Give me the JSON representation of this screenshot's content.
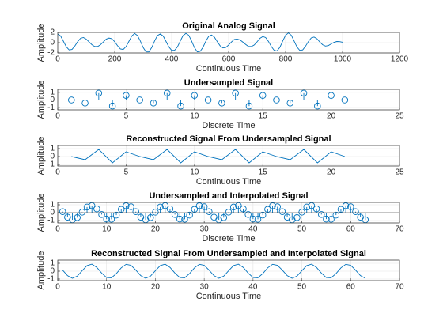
{
  "chart_data": [
    {
      "type": "line",
      "title": "Original Analog Signal",
      "xlabel": "Continuous Time",
      "ylabel": "Amplitude",
      "color": "#0072BD",
      "grid": true,
      "xlim": [
        0,
        1200
      ],
      "xticks": [
        0,
        200,
        400,
        600,
        800,
        1000,
        1200
      ],
      "ylim": [
        -2,
        2
      ],
      "yticks": [
        -2,
        0,
        2
      ],
      "x": [
        0,
        10,
        20,
        30,
        40,
        50,
        60,
        70,
        80,
        90,
        100,
        110,
        120,
        130,
        140,
        150,
        160,
        170,
        180,
        190,
        200,
        210,
        220,
        230,
        240,
        250,
        260,
        270,
        280,
        290,
        300,
        310,
        320,
        330,
        340,
        350,
        360,
        370,
        380,
        390,
        400,
        410,
        420,
        430,
        440,
        450,
        460,
        470,
        480,
        490,
        500,
        510,
        520,
        530,
        540,
        550,
        560,
        570,
        580,
        590,
        600,
        610,
        620,
        630,
        640,
        650,
        660,
        670,
        680,
        690,
        700,
        710,
        720,
        730,
        740,
        750,
        760,
        770,
        780,
        790,
        800,
        810,
        820,
        830,
        840,
        850,
        860,
        870,
        880,
        890,
        900,
        910,
        920,
        930,
        940,
        950,
        960,
        970,
        980,
        990,
        1000
      ],
      "values": [
        1.7,
        1.31,
        0.27,
        -0.8,
        -1.41,
        -1.32,
        -0.65,
        0.2,
        0.85,
        1.0,
        0.69,
        0.15,
        -0.4,
        -0.75,
        -0.75,
        -0.4,
        0.14,
        0.69,
        0.9,
        0.77,
        0.19,
        -0.6,
        -1.22,
        -1.32,
        -0.75,
        0.27,
        1.31,
        1.8,
        1.39,
        0.32,
        -0.95,
        -1.79,
        -1.79,
        -0.95,
        0.31,
        1.39,
        1.7,
        1.31,
        0.27,
        -0.8,
        -1.5,
        -1.5,
        -0.85,
        0.29,
        1.39,
        1.8,
        1.46,
        0.32,
        -0.95,
        -1.79,
        -1.69,
        -0.9,
        0.29,
        1.23,
        1.5,
        1.08,
        0.22,
        -0.6,
        -1.03,
        -0.94,
        -0.45,
        0.14,
        0.62,
        0.7,
        0.54,
        0.12,
        -0.35,
        -0.75,
        -0.75,
        -0.45,
        0.17,
        0.85,
        1.2,
        1.0,
        0.24,
        -0.75,
        -1.5,
        -1.6,
        -0.9,
        0.32,
        1.46,
        1.9,
        1.46,
        0.31,
        -0.85,
        -1.5,
        -1.41,
        -0.7,
        0.22,
        0.92,
        1.1,
        0.77,
        0.15,
        -0.4,
        -0.66,
        -0.56,
        -0.25,
        0.07,
        0.23,
        0.2,
        0.08
      ]
    },
    {
      "type": "stem",
      "title": "Undersampled Signal",
      "xlabel": "Discrete Time",
      "ylabel": "Amplitude",
      "color": "#0072BD",
      "grid": true,
      "xlim": [
        0,
        25
      ],
      "xticks": [
        0,
        5,
        10,
        15,
        20,
        25
      ],
      "ylim": [
        -1.3,
        1.4
      ],
      "yticks": [
        -1,
        0,
        1
      ],
      "x": [
        1,
        2,
        3,
        4,
        5,
        6,
        7,
        8,
        9,
        10,
        11,
        12,
        13,
        14,
        15,
        16,
        17,
        18,
        19,
        20,
        21
      ],
      "values": [
        0,
        -0.4,
        0.9,
        -0.8,
        0.6,
        0,
        -0.4,
        0.9,
        -0.8,
        0.6,
        0,
        -0.4,
        0.9,
        -0.8,
        0.6,
        0,
        -0.4,
        0.9,
        -0.8,
        0.6,
        0
      ]
    },
    {
      "type": "line",
      "title": "Reconstructed Signal From Undersampled Signal",
      "xlabel": "Continuous Time",
      "ylabel": "Amplitude",
      "color": "#0072BD",
      "grid": true,
      "xlim": [
        0,
        25
      ],
      "xticks": [
        0,
        5,
        10,
        15,
        20,
        25
      ],
      "ylim": [
        -1.2,
        1.4
      ],
      "yticks": [
        -1,
        0,
        1
      ],
      "x": [
        1,
        2,
        3,
        4,
        5,
        6,
        7,
        8,
        9,
        10,
        11,
        12,
        13,
        14,
        15,
        16,
        17,
        18,
        19,
        20,
        21
      ],
      "values": [
        0,
        -0.4,
        0.9,
        -0.8,
        0.6,
        0,
        -0.4,
        0.9,
        -0.8,
        0.6,
        0,
        -0.4,
        0.9,
        -0.8,
        0.6,
        0,
        -0.4,
        0.9,
        -0.8,
        0.6,
        0
      ]
    },
    {
      "type": "stem",
      "title": "Undersampled and Interpolated Signal",
      "xlabel": "Discrete Time",
      "ylabel": "Amplitude",
      "color": "#0072BD",
      "grid": true,
      "xlim": [
        0,
        70
      ],
      "xticks": [
        0,
        10,
        20,
        30,
        40,
        50,
        60,
        70
      ],
      "ylim": [
        -1.3,
        1.3
      ],
      "yticks": [
        -1,
        0,
        1
      ],
      "x": [
        1,
        2,
        3,
        4,
        5,
        6,
        7,
        8,
        9,
        10,
        11,
        12,
        13,
        14,
        15,
        16,
        17,
        18,
        19,
        20,
        21,
        22,
        23,
        24,
        25,
        26,
        27,
        28,
        29,
        30,
        31,
        32,
        33,
        34,
        35,
        36,
        37,
        38,
        39,
        40,
        41,
        42,
        43,
        44,
        45,
        46,
        47,
        48,
        49,
        50,
        51,
        52,
        53,
        54,
        55,
        56,
        57,
        58,
        59,
        60,
        61,
        62,
        63
      ],
      "values": [
        0.13,
        -0.57,
        -0.9,
        -0.63,
        0.06,
        0.71,
        0.89,
        0.48,
        -0.24,
        -0.81,
        -0.84,
        -0.31,
        0.42,
        0.87,
        0.75,
        0.13,
        -0.57,
        -0.9,
        -0.63,
        0.06,
        0.71,
        0.89,
        0.48,
        -0.24,
        -0.81,
        -0.84,
        -0.31,
        0.42,
        0.87,
        0.75,
        0.13,
        -0.57,
        -0.9,
        -0.63,
        0.06,
        0.71,
        0.89,
        0.48,
        -0.24,
        -0.81,
        -0.84,
        -0.31,
        0.42,
        0.87,
        0.75,
        0.13,
        -0.57,
        -0.9,
        -0.63,
        0.06,
        0.71,
        0.89,
        0.48,
        -0.24,
        -0.81,
        -0.84,
        -0.31,
        0.42,
        0.87,
        0.75,
        0.13,
        -0.57,
        -0.9
      ]
    },
    {
      "type": "line",
      "title": "Reconstructed Signal From Undersampled and Interpolated Signal",
      "xlabel": "Continuous Time",
      "ylabel": "Amplitude",
      "color": "#0072BD",
      "grid": true,
      "xlim": [
        0,
        70
      ],
      "xticks": [
        0,
        10,
        20,
        30,
        40,
        50,
        60,
        70
      ],
      "ylim": [
        -1.2,
        1.4
      ],
      "yticks": [
        -1,
        0,
        1
      ],
      "x": [
        1,
        2,
        3,
        4,
        5,
        6,
        7,
        8,
        9,
        10,
        11,
        12,
        13,
        14,
        15,
        16,
        17,
        18,
        19,
        20,
        21,
        22,
        23,
        24,
        25,
        26,
        27,
        28,
        29,
        30,
        31,
        32,
        33,
        34,
        35,
        36,
        37,
        38,
        39,
        40,
        41,
        42,
        43,
        44,
        45,
        46,
        47,
        48,
        49,
        50,
        51,
        52,
        53,
        54,
        55,
        56,
        57,
        58,
        59,
        60,
        61,
        62,
        63
      ],
      "values": [
        0.13,
        -0.57,
        -0.9,
        -0.63,
        0.06,
        0.71,
        0.89,
        0.48,
        -0.24,
        -0.81,
        -0.84,
        -0.31,
        0.42,
        0.87,
        0.75,
        0.13,
        -0.57,
        -0.9,
        -0.63,
        0.06,
        0.71,
        0.89,
        0.48,
        -0.24,
        -0.81,
        -0.84,
        -0.31,
        0.42,
        0.87,
        0.75,
        0.13,
        -0.57,
        -0.9,
        -0.63,
        0.06,
        0.71,
        0.89,
        0.48,
        -0.24,
        -0.81,
        -0.84,
        -0.31,
        0.42,
        0.87,
        0.75,
        0.13,
        -0.57,
        -0.9,
        -0.63,
        0.06,
        0.71,
        0.89,
        0.48,
        -0.24,
        -0.81,
        -0.84,
        -0.31,
        0.42,
        0.87,
        0.75,
        0.13,
        -0.57,
        -0.9
      ]
    }
  ]
}
